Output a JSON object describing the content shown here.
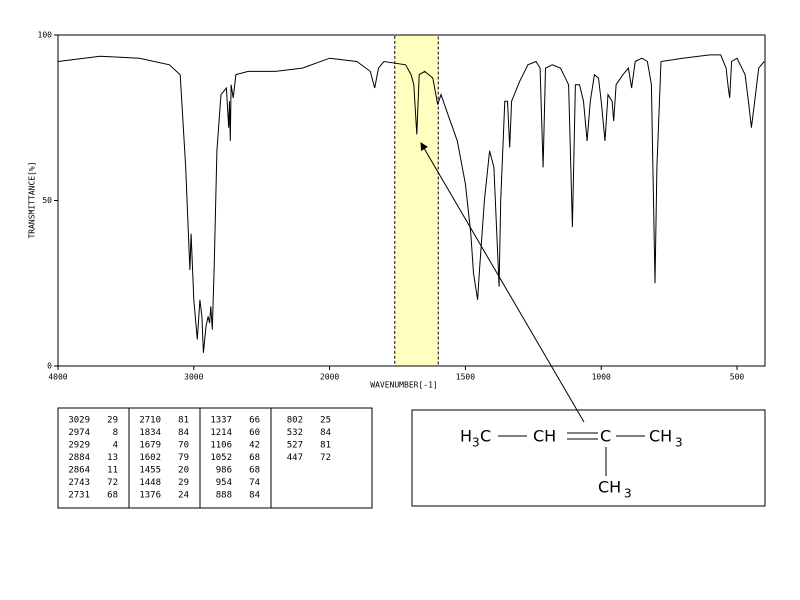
{
  "chart_data": {
    "type": "line",
    "xlabel": "WAVENUMBER[-1]",
    "ylabel": "TRANSMITTANCE[%]",
    "xlim": [
      4000,
      400
    ],
    "xticks": [
      4000,
      3000,
      2000,
      1500,
      1000,
      500
    ],
    "ylim": [
      0,
      100
    ],
    "yticks": [
      0,
      50,
      100
    ],
    "color": "#000000",
    "highlight": [
      1760,
      1600
    ],
    "highlight_color": "#ffffc0",
    "x": [
      4000,
      3690,
      3400,
      3180,
      3100,
      3060,
      3040,
      3029,
      3020,
      3000,
      2974,
      2955,
      2940,
      2929,
      2910,
      2895,
      2884,
      2875,
      2864,
      2850,
      2830,
      2800,
      2760,
      2743,
      2737,
      2731,
      2725,
      2710,
      2690,
      2600,
      2400,
      2200,
      2000,
      1900,
      1850,
      1834,
      1820,
      1800,
      1720,
      1700,
      1690,
      1679,
      1670,
      1650,
      1620,
      1602,
      1590,
      1560,
      1530,
      1500,
      1480,
      1470,
      1455,
      1448,
      1430,
      1411,
      1395,
      1376,
      1370,
      1355,
      1345,
      1337,
      1330,
      1300,
      1270,
      1240,
      1225,
      1214,
      1205,
      1180,
      1150,
      1120,
      1106,
      1095,
      1080,
      1065,
      1052,
      1040,
      1025,
      1010,
      1000,
      986,
      975,
      960,
      954,
      945,
      920,
      900,
      888,
      875,
      850,
      830,
      815,
      802,
      795,
      780,
      700,
      600,
      560,
      540,
      532,
      527,
      520,
      500,
      470,
      455,
      447,
      435,
      420,
      400
    ],
    "values": [
      92,
      93.6,
      93,
      91,
      88,
      60,
      40,
      29,
      40,
      20,
      8,
      20,
      15,
      4,
      12,
      15,
      13,
      18,
      11,
      30,
      65,
      82,
      84,
      72,
      80,
      68,
      85,
      81,
      88,
      89,
      89,
      90,
      93,
      92,
      89,
      84,
      90,
      92,
      91,
      88,
      85,
      70,
      88,
      89,
      87,
      79,
      82,
      75,
      68,
      55,
      40,
      28,
      20,
      29,
      50,
      65,
      60,
      24,
      50,
      80,
      80,
      66,
      80,
      86,
      91,
      92,
      90,
      60,
      90,
      91,
      90,
      85,
      42,
      85,
      85,
      80,
      68,
      80,
      88,
      87,
      80,
      68,
      82,
      80,
      74,
      85,
      88,
      90,
      84,
      92,
      93,
      92,
      85,
      25,
      60,
      92,
      93,
      94,
      94,
      90,
      84,
      81,
      92,
      93,
      88,
      78,
      72,
      80,
      90,
      92
    ]
  },
  "peak_table": [
    [
      3029,
      29
    ],
    [
      2974,
      8
    ],
    [
      2929,
      4
    ],
    [
      2884,
      13
    ],
    [
      2864,
      11
    ],
    [
      2743,
      72
    ],
    [
      2731,
      68
    ],
    [
      2710,
      81
    ],
    [
      1834,
      84
    ],
    [
      1679,
      70
    ],
    [
      1602,
      79
    ],
    [
      1455,
      20
    ],
    [
      1448,
      29
    ],
    [
      1376,
      24
    ],
    [
      1337,
      66
    ],
    [
      1214,
      60
    ],
    [
      1106,
      42
    ],
    [
      1052,
      68
    ],
    [
      986,
      68
    ],
    [
      954,
      74
    ],
    [
      888,
      84
    ],
    [
      802,
      25
    ],
    [
      532,
      84
    ],
    [
      527,
      81
    ],
    [
      447,
      72
    ]
  ],
  "structure": {
    "h3c": [
      "H",
      "3",
      "C"
    ],
    "ch": "CH",
    "c": "C",
    "ch3_right": [
      "CH",
      "3"
    ],
    "ch3_down": [
      "CH",
      "3"
    ]
  }
}
